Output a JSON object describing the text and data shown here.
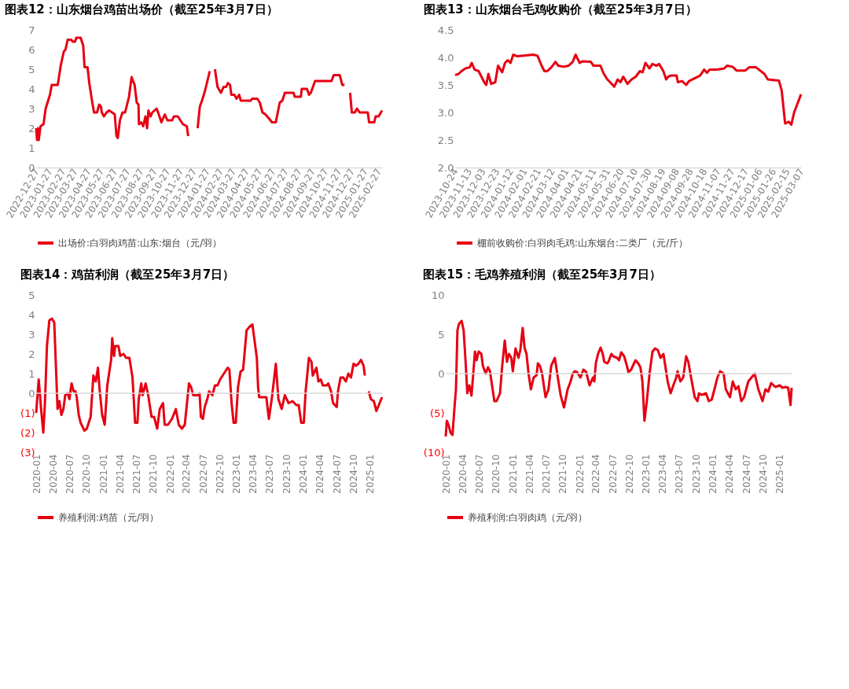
{
  "chart_data": [
    {
      "type": "line",
      "title": "图表12：山东烟台鸡苗出场价（截至25年3月7日）",
      "legend": "bottom",
      "xlim": [
        "2022-12-27",
        "2025-03-07"
      ],
      "xticks": [
        "2022-12-27",
        "2023-01-27",
        "2023-02-27",
        "2023-03-27",
        "2023-04-27",
        "2023-05-27",
        "2023-06-27",
        "2023-07-27",
        "2023-08-27",
        "2023-09-27",
        "2023-10-27",
        "2023-11-27",
        "2023-12-27",
        "2024-01-27",
        "2024-02-27",
        "2024-03-27",
        "2024-04-27",
        "2024-05-27",
        "2024-06-27",
        "2024-07-27",
        "2024-08-27",
        "2024-09-27",
        "2024-10-27",
        "2024-11-27",
        "2024-12-27",
        "2025-01-27",
        "2025-02-27"
      ],
      "ylim": [
        0,
        7
      ],
      "yticks": [
        0,
        1,
        2,
        3,
        4,
        5,
        6,
        7
      ],
      "x": [
        "2022-12-27",
        "2022-12-29",
        "2022-12-31",
        "2023-01-02",
        "2023-01-06",
        "2023-01-13",
        "2023-01-18",
        "2023-01-28",
        "2023-02-01",
        "2023-02-15",
        "2023-02-22",
        "2023-03-01",
        "2023-03-05",
        "2023-03-10",
        "2023-03-18",
        "2023-03-22",
        "2023-03-27",
        "2023-03-30",
        "2023-04-09",
        "2023-04-15",
        "2023-04-18",
        "2023-04-25",
        "2023-04-29",
        "2023-05-06",
        "2023-05-10",
        "2023-05-17",
        "2023-05-22",
        "2023-05-26",
        "2023-05-28",
        "2023-06-02",
        "2023-06-08",
        "2023-06-14",
        "2023-06-21",
        "2023-06-27",
        "2023-07-01",
        "2023-07-04",
        "2023-07-09",
        "2023-07-15",
        "2023-07-21",
        "2023-07-30",
        "2023-08-05",
        "2023-08-12",
        "2023-08-17",
        "2023-08-21",
        "2023-08-22",
        "2023-08-27",
        "2023-09-01",
        "2023-09-06",
        "2023-09-10",
        "2023-09-13",
        "2023-09-18",
        "2023-09-22",
        "2023-10-02",
        "2023-10-07",
        "2023-10-13",
        "2023-10-21",
        "2023-10-27",
        "2023-11-07",
        "2023-11-11",
        "2023-11-20",
        "2023-11-26",
        "2023-12-02",
        "2023-12-11",
        "2023-12-14",
        "2023-12-24",
        "2024-01-05",
        "2024-01-10",
        "2024-01-15",
        "2024-01-22",
        "2024-02-02",
        "2024-02-08",
        "2024-02-14",
        "2024-02-20",
        "2024-02-28",
        "2024-03-05",
        "2024-03-11",
        "2024-03-15",
        "2024-03-20",
        "2024-03-23",
        "2024-03-30",
        "2024-04-04",
        "2024-04-10",
        "2024-04-14",
        "2024-05-07",
        "2024-05-10",
        "2024-05-22",
        "2024-05-28",
        "2024-06-03",
        "2024-06-10",
        "2024-06-18",
        "2024-06-25",
        "2024-07-04",
        "2024-07-13",
        "2024-07-19",
        "2024-07-25",
        "2024-08-14",
        "2024-08-17",
        "2024-08-31",
        "2024-09-02",
        "2024-09-14",
        "2024-09-19",
        "2024-09-23",
        "2024-10-03",
        "2024-11-10",
        "2024-11-15",
        "2024-11-29",
        "2024-12-05",
        "2024-12-10",
        "2024-12-17",
        "2024-12-23",
        "2024-12-27",
        "2025-01-03",
        "2025-01-08",
        "2025-01-14",
        "2025-02-02",
        "2025-02-05",
        "2025-02-17",
        "2025-02-20",
        "2025-02-27",
        "2025-03-07"
      ],
      "series": [
        {
          "name": "出场价:白羽肉鸡苗:山东:烟台（元/羽）",
          "color": "#e60012",
          "values": [
            2.0,
            1.4,
            2.0,
            1.4,
            2.1,
            2.2,
            3.0,
            3.7,
            4.2,
            4.2,
            5.2,
            5.9,
            6.0,
            6.5,
            6.5,
            6.4,
            6.4,
            6.6,
            6.6,
            6.2,
            5.1,
            5.1,
            4.3,
            3.3,
            2.8,
            2.8,
            3.2,
            3.1,
            2.8,
            2.6,
            2.8,
            2.9,
            2.8,
            2.7,
            1.6,
            1.5,
            2.4,
            2.8,
            2.8,
            3.6,
            4.6,
            4.2,
            3.3,
            3.2,
            2.2,
            2.3,
            2.1,
            2.6,
            2.0,
            2.9,
            2.6,
            2.8,
            3.0,
            2.7,
            2.3,
            2.7,
            2.4,
            2.4,
            2.6,
            2.6,
            2.4,
            2.2,
            2.1,
            1.6,
            null,
            2.0,
            3.1,
            3.4,
            3.9,
            4.9,
            null,
            5.0,
            4.1,
            3.8,
            4.1,
            4.1,
            4.3,
            4.2,
            3.7,
            3.7,
            3.5,
            3.7,
            3.4,
            3.4,
            3.5,
            3.5,
            3.3,
            2.8,
            2.7,
            2.5,
            2.3,
            2.3,
            3.3,
            3.4,
            3.8,
            3.8,
            3.6,
            3.6,
            4.0,
            4.0,
            3.7,
            3.8,
            4.4,
            4.4,
            4.7,
            4.7,
            4.2,
            4.2,
            null,
            3.8,
            2.8,
            2.8,
            3.0,
            2.8,
            2.8,
            2.3,
            2.3,
            2.6,
            2.6,
            2.9
          ]
        }
      ]
    },
    {
      "type": "line",
      "title": "图表13：山东烟台毛鸡收购价（截至25年3月7日）",
      "legend": "bottom",
      "xlim": [
        "2023-10-24",
        "2025-03-07"
      ],
      "xticks": [
        "2023-10-24",
        "2023-11-13",
        "2023-12-03",
        "2023-12-23",
        "2024-01-12",
        "2024-02-01",
        "2024-02-21",
        "2024-03-12",
        "2024-04-01",
        "2024-04-21",
        "2024-05-11",
        "2024-05-31",
        "2024-06-20",
        "2024-07-10",
        "2024-07-30",
        "2024-08-19",
        "2024-09-08",
        "2024-09-28",
        "2024-10-18",
        "2024-11-07",
        "2024-11-27",
        "2024-12-17",
        "2025-01-06",
        "2025-01-26",
        "2025-02-15",
        "2025-03-07"
      ],
      "ylim": [
        2,
        4.5
      ],
      "yticks": [
        {
          "value": 2,
          "label": "2.0"
        },
        {
          "value": 2.5,
          "label": "2.5"
        },
        {
          "value": 3,
          "label": "3.0"
        },
        {
          "value": 3.5,
          "label": "3.5"
        },
        {
          "value": 4,
          "label": "4.0"
        },
        {
          "value": 4.5,
          "label": "4.5"
        }
      ],
      "x": [
        "2023-10-24",
        "2023-10-29",
        "2023-11-02",
        "2023-11-08",
        "2023-11-14",
        "2023-11-17",
        "2023-11-21",
        "2023-11-27",
        "2023-12-01",
        "2023-12-05",
        "2023-12-08",
        "2023-12-11",
        "2023-12-15",
        "2023-12-21",
        "2023-12-25",
        "2023-12-31",
        "2024-01-04",
        "2024-01-08",
        "2024-01-12",
        "2024-01-16",
        "2024-01-22",
        "2024-02-14",
        "2024-02-20",
        "2024-02-26",
        "2024-03-01",
        "2024-03-05",
        "2024-03-11",
        "2024-03-17",
        "2024-03-21",
        "2024-03-29",
        "2024-04-05",
        "2024-04-11",
        "2024-04-15",
        "2024-04-21",
        "2024-04-25",
        "2024-05-07",
        "2024-05-11",
        "2024-05-21",
        "2024-05-26",
        "2024-05-31",
        "2024-06-04",
        "2024-06-10",
        "2024-06-15",
        "2024-06-19",
        "2024-06-23",
        "2024-06-29",
        "2024-07-05",
        "2024-07-11",
        "2024-07-17",
        "2024-07-21",
        "2024-07-25",
        "2024-07-31",
        "2024-08-04",
        "2024-08-10",
        "2024-08-14",
        "2024-08-20",
        "2024-08-24",
        "2024-08-27",
        "2024-08-31",
        "2024-09-08",
        "2024-09-10",
        "2024-09-16",
        "2024-09-22",
        "2024-09-26",
        "2024-10-04",
        "2024-10-12",
        "2024-10-18",
        "2024-10-22",
        "2024-10-26",
        "2024-11-05",
        "2024-11-16",
        "2024-11-20",
        "2024-11-28",
        "2024-12-04",
        "2024-12-16",
        "2024-12-22",
        "2025-01-01",
        "2025-01-07",
        "2025-01-13",
        "2025-01-18",
        "2025-02-03",
        "2025-02-07",
        "2025-02-12",
        "2025-02-17",
        "2025-02-21",
        "2025-02-25",
        "2025-02-28",
        "2025-03-07"
      ],
      "series": [
        {
          "name": "棚前收购价:白羽肉毛鸡:山东烟台:二类厂（元/斤）",
          "color": "#e60012",
          "values": [
            3.68,
            3.7,
            3.75,
            3.8,
            3.82,
            3.9,
            3.78,
            3.75,
            3.65,
            3.55,
            3.5,
            3.7,
            3.52,
            3.55,
            3.85,
            3.73,
            3.9,
            3.95,
            3.9,
            4.05,
            4.02,
            4.05,
            4.03,
            3.85,
            3.75,
            3.75,
            3.82,
            3.92,
            3.85,
            3.83,
            3.85,
            3.92,
            4.05,
            3.9,
            3.93,
            3.92,
            3.85,
            3.85,
            3.7,
            3.6,
            3.55,
            3.47,
            3.6,
            3.55,
            3.65,
            3.52,
            3.6,
            3.65,
            3.75,
            3.73,
            3.9,
            3.8,
            3.88,
            3.85,
            3.88,
            3.75,
            3.6,
            3.65,
            3.67,
            3.67,
            3.55,
            3.57,
            3.5,
            3.57,
            3.62,
            3.67,
            3.78,
            3.72,
            3.78,
            3.78,
            3.8,
            3.85,
            3.83,
            3.76,
            3.76,
            3.82,
            3.82,
            3.76,
            3.7,
            3.6,
            3.58,
            3.4,
            2.8,
            2.83,
            2.78,
            3.0,
            3.1,
            3.33
          ]
        }
      ]
    },
    {
      "type": "line",
      "title": "图表14：鸡苗利润（截至25年3月7日）",
      "legend": "bottom",
      "xlim": [
        "2020-01-01",
        "2025-03-07"
      ],
      "xticks": [
        "2020-01",
        "2020-04",
        "2020-07",
        "2020-10",
        "2021-01",
        "2021-04",
        "2021-07",
        "2021-10",
        "2022-01",
        "2022-04",
        "2022-07",
        "2022-10",
        "2023-01",
        "2023-04",
        "2023-07",
        "2023-10",
        "2024-01",
        "2024-04",
        "2024-07",
        "2024-10",
        "2025-01"
      ],
      "ref_lines": [
        {
          "axis": "y",
          "value": 0,
          "color": "#d9d9d9"
        }
      ],
      "ylim": [
        -3,
        5
      ],
      "yticks": [
        {
          "value": -3,
          "label": "(3)"
        },
        {
          "value": -2,
          "label": "(2)"
        },
        {
          "value": -1,
          "label": "(1)"
        },
        0,
        1,
        2,
        3,
        4,
        5
      ],
      "x": [
        "2020-01-01",
        "2020-01-15",
        "2020-01-28",
        "2020-02-09",
        "2020-02-18",
        "2020-02-29",
        "2020-03-13",
        "2020-03-27",
        "2020-04-09",
        "2020-04-27",
        "2020-05-07",
        "2020-05-18",
        "2020-05-29",
        "2020-06-08",
        "2020-06-22",
        "2020-07-01",
        "2020-07-13",
        "2020-07-24",
        "2020-08-03",
        "2020-08-10",
        "2020-08-21",
        "2020-08-31",
        "2020-09-21",
        "2020-10-04",
        "2020-10-25",
        "2020-11-09",
        "2020-11-22",
        "2020-12-04",
        "2020-12-13",
        "2020-12-27",
        "2021-01-10",
        "2021-01-24",
        "2021-02-14",
        "2021-02-20",
        "2021-03-02",
        "2021-03-08",
        "2021-03-26",
        "2021-04-05",
        "2021-04-23",
        "2021-05-07",
        "2021-05-25",
        "2021-06-11",
        "2021-06-25",
        "2021-07-08",
        "2021-07-15",
        "2021-07-29",
        "2021-08-05",
        "2021-08-22",
        "2021-09-05",
        "2021-09-23",
        "2021-10-07",
        "2021-10-24",
        "2021-11-07",
        "2021-11-25",
        "2021-12-04",
        "2021-12-22",
        "2022-01-13",
        "2022-02-03",
        "2022-02-19",
        "2022-03-08",
        "2022-03-24",
        "2022-04-16",
        "2022-04-28",
        "2022-05-09",
        "2022-06-07",
        "2022-06-13",
        "2022-06-20",
        "2022-07-01",
        "2022-07-11",
        "2022-07-25",
        "2022-08-04",
        "2022-08-22",
        "2022-09-05",
        "2022-09-19",
        "2022-10-03",
        "2022-10-17",
        "2022-11-14",
        "2022-11-23",
        "2022-12-05",
        "2022-12-16",
        "2022-12-28",
        "2023-01-09",
        "2023-01-23",
        "2023-02-06",
        "2023-02-25",
        "2023-03-15",
        "2023-03-29",
        "2023-04-22",
        "2023-04-29",
        "2023-05-05",
        "2023-05-19",
        "2023-05-26",
        "2023-06-13",
        "2023-06-27",
        "2023-07-14",
        "2023-08-04",
        "2023-08-18",
        "2023-09-05",
        "2023-09-22",
        "2023-10-13",
        "2023-11-03",
        "2023-11-24",
        "2023-12-07",
        "2023-12-21",
        "2024-01-04",
        "2024-01-14",
        "2024-02-01",
        "2024-02-15",
        "2024-02-22",
        "2024-03-13",
        "2024-03-24",
        "2024-04-06",
        "2024-04-17",
        "2024-05-08",
        "2024-05-17",
        "2024-06-01",
        "2024-06-12",
        "2024-07-02",
        "2024-07-09",
        "2024-07-23",
        "2024-08-07",
        "2024-08-21",
        "2024-09-04",
        "2024-09-18",
        "2024-10-02",
        "2024-10-15",
        "2024-10-29",
        "2024-11-12",
        "2024-11-26",
        "2024-12-03",
        "2024-12-15",
        "2024-12-24",
        "2025-01-05",
        "2025-01-21",
        "2025-02-04",
        "2025-03-07"
      ],
      "series": [
        {
          "name": "养殖利润:鸡苗（元/羽）",
          "color": "#e60012",
          "values": [
            -1.0,
            0.7,
            -0.8,
            -2.0,
            -0.5,
            2.4,
            3.7,
            3.8,
            3.6,
            -0.8,
            -0.4,
            -1.1,
            -0.8,
            -0.1,
            0.0,
            -0.3,
            0.5,
            0.1,
            0.1,
            -0.2,
            -1.1,
            -1.5,
            -1.9,
            -1.8,
            -1.2,
            0.9,
            0.6,
            1.3,
            0.2,
            -1.1,
            -1.6,
            0.4,
            1.7,
            2.8,
            1.9,
            2.4,
            2.4,
            1.9,
            2.0,
            1.8,
            1.8,
            0.8,
            -1.5,
            -1.5,
            -0.3,
            0.5,
            -0.1,
            0.5,
            -0.1,
            -1.2,
            -1.2,
            -1.8,
            -0.8,
            -0.5,
            -1.6,
            -1.6,
            -1.3,
            -0.8,
            -1.6,
            -1.8,
            -1.6,
            0.5,
            0.3,
            -0.1,
            -0.1,
            0.0,
            -1.2,
            -1.3,
            -0.7,
            -0.3,
            0.1,
            -0.1,
            0.4,
            0.4,
            0.7,
            0.9,
            1.3,
            1.2,
            -0.5,
            -1.5,
            -1.5,
            0.3,
            1.1,
            1.2,
            3.2,
            3.4,
            3.5,
            1.8,
            0.3,
            -0.2,
            -0.2,
            -0.2,
            -0.2,
            -1.3,
            -0.2,
            1.5,
            -0.3,
            -0.8,
            -0.1,
            -0.5,
            -0.4,
            -0.6,
            -0.6,
            -1.5,
            -1.5,
            0.1,
            1.8,
            1.6,
            0.9,
            1.3,
            0.6,
            0.7,
            0.4,
            0.4,
            0.5,
            0.1,
            -0.5,
            -0.7,
            0.1,
            0.8,
            0.8,
            0.6,
            1.0,
            0.8,
            1.5,
            1.4,
            1.5,
            1.7,
            1.4,
            0.9,
            null,
            0.1,
            -0.3,
            -0.4,
            -0.9,
            -0.2
          ]
        }
      ]
    },
    {
      "type": "line",
      "title": "图表15：毛鸡养殖利润（截至25年3月7日）",
      "legend": "bottom",
      "xlim": [
        "2020-01-01",
        "2025-03-07"
      ],
      "xticks": [
        "2020-01",
        "2020-04",
        "2020-07",
        "2020-10",
        "2021-01",
        "2021-04",
        "2021-07",
        "2021-10",
        "2022-01",
        "2022-04",
        "2022-07",
        "2022-10",
        "2023-01",
        "2023-04",
        "2023-07",
        "2023-10",
        "2024-01",
        "2024-04",
        "2024-07",
        "2024-10",
        "2025-01"
      ],
      "ref_lines": [
        {
          "axis": "y",
          "value": 0,
          "color": "#d9d9d9"
        }
      ],
      "ylim": [
        -10,
        10
      ],
      "yticks": [
        {
          "value": -10,
          "label": "(10)"
        },
        {
          "value": -5,
          "label": "(5)"
        },
        0,
        5,
        10
      ],
      "x": [
        "2020-01-01",
        "2020-01-07",
        "2020-01-16",
        "2020-01-27",
        "2020-02-07",
        "2020-02-19",
        "2020-02-26",
        "2020-03-05",
        "2020-03-13",
        "2020-03-28",
        "2020-04-08",
        "2020-04-20",
        "2020-04-28",
        "2020-05-09",
        "2020-05-21",
        "2020-06-03",
        "2020-06-09",
        "2020-06-18",
        "2020-06-29",
        "2020-07-14",
        "2020-07-22",
        "2020-08-07",
        "2020-08-19",
        "2020-08-30",
        "2020-09-23",
        "2020-10-05",
        "2020-10-24",
        "2020-11-05",
        "2020-11-19",
        "2020-12-01",
        "2020-12-12",
        "2020-12-25",
        "2021-01-02",
        "2021-01-17",
        "2021-02-02",
        "2021-02-12",
        "2021-02-25",
        "2021-03-07",
        "2021-03-18",
        "2021-03-29",
        "2021-04-11",
        "2021-04-26",
        "2021-05-12",
        "2021-05-19",
        "2021-05-30",
        "2021-06-11",
        "2021-06-30",
        "2021-07-16",
        "2021-07-31",
        "2021-08-20",
        "2021-09-05",
        "2021-09-21",
        "2021-10-09",
        "2021-10-29",
        "2021-11-14",
        "2021-11-26",
        "2021-12-07",
        "2021-12-19",
        "2022-01-07",
        "2022-01-23",
        "2022-02-07",
        "2022-02-26",
        "2022-03-16",
        "2022-03-24",
        "2022-04-01",
        "2022-04-13",
        "2022-04-27",
        "2022-05-09",
        "2022-05-17",
        "2022-06-02",
        "2022-06-09",
        "2022-06-25",
        "2022-07-05",
        "2022-07-26",
        "2022-08-06",
        "2022-08-18",
        "2022-09-03",
        "2022-09-18",
        "2022-09-26",
        "2022-10-11",
        "2022-11-04",
        "2022-11-19",
        "2022-12-01",
        "2022-12-12",
        "2022-12-23",
        "2023-01-05",
        "2023-01-20",
        "2023-02-05",
        "2023-02-19",
        "2023-03-06",
        "2023-03-21",
        "2023-04-06",
        "2023-04-29",
        "2023-05-15",
        "2023-05-30",
        "2023-06-15",
        "2023-06-22",
        "2023-07-08",
        "2023-07-23",
        "2023-08-08",
        "2023-08-20",
        "2023-09-08",
        "2023-09-24",
        "2023-10-09",
        "2023-10-17",
        "2023-11-02",
        "2023-11-25",
        "2023-12-10",
        "2023-12-26",
        "2024-01-10",
        "2024-01-26",
        "2024-02-10",
        "2024-02-29",
        "2024-03-12",
        "2024-04-04",
        "2024-04-19",
        "2024-05-05",
        "2024-05-20",
        "2024-06-05",
        "2024-06-20",
        "2024-07-13",
        "2024-08-17",
        "2024-09-06",
        "2024-09-29",
        "2024-10-15",
        "2024-10-30",
        "2024-11-15",
        "2024-12-08",
        "2025-01-01",
        "2025-01-16",
        "2025-02-01",
        "2025-02-16",
        "2025-03-01",
        "2025-03-07"
      ],
      "series": [
        {
          "name": "养殖利润:白羽肉鸡（元/羽）",
          "color": "#e60012",
          "values": [
            -8.0,
            -6.0,
            -6.5,
            -7.5,
            -7.8,
            -4.0,
            -2.0,
            5.5,
            6.3,
            6.7,
            5.5,
            1.0,
            -2.5,
            -1.5,
            -2.8,
            1.0,
            2.8,
            1.7,
            2.8,
            2.5,
            1.0,
            0.0,
            0.8,
            0.3,
            -3.5,
            -3.5,
            -2.5,
            1.0,
            4.2,
            1.5,
            2.5,
            2.0,
            0.3,
            3.2,
            2.0,
            3.0,
            5.8,
            3.3,
            2.5,
            0.0,
            -2.0,
            -0.5,
            -0.2,
            1.3,
            1.0,
            0.0,
            -3.0,
            -2.0,
            1.0,
            2.0,
            -0.5,
            -2.8,
            -4.3,
            -2.0,
            -1.0,
            0.0,
            0.3,
            0.2,
            -0.5,
            0.5,
            0.2,
            -1.5,
            -0.5,
            -1.0,
            1.3,
            2.5,
            3.3,
            2.5,
            1.5,
            1.3,
            1.5,
            2.5,
            2.2,
            2.0,
            1.7,
            2.7,
            2.2,
            1.0,
            0.2,
            0.5,
            1.7,
            1.3,
            0.8,
            -1.0,
            -6.0,
            -3.5,
            0.0,
            2.8,
            3.2,
            3.0,
            2.0,
            2.5,
            -1.0,
            -2.5,
            -1.5,
            -0.5,
            0.3,
            -1.0,
            -0.5,
            2.2,
            1.5,
            -1.0,
            -3.0,
            -3.5,
            -2.5,
            -2.7,
            -2.5,
            -3.5,
            -3.3,
            -2.0,
            -0.5,
            0.3,
            0.0,
            -2.0,
            -3.0,
            -1.0,
            -2.0,
            -1.6,
            -3.5,
            -3.0,
            -1.0,
            0.0,
            -2.0,
            -3.5,
            -2.0,
            -2.3,
            -1.2,
            -1.7,
            -1.5,
            -1.8,
            -1.7,
            -1.8,
            -4.0,
            -1.8
          ]
        }
      ]
    }
  ]
}
